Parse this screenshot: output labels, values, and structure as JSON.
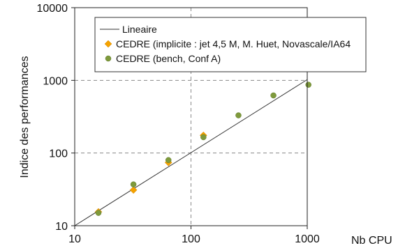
{
  "chart_data": {
    "type": "scatter",
    "title": "",
    "xlabel": "Nb CPU",
    "ylabel": "Indice des performances",
    "xscale": "log",
    "yscale": "log",
    "xlim": [
      10,
      1000
    ],
    "ylim": [
      10,
      10000
    ],
    "x_ticks": [
      {
        "value": 10,
        "label": "10"
      },
      {
        "value": 100,
        "label": "100"
      },
      {
        "value": 1000,
        "label": "1000"
      }
    ],
    "y_ticks": [
      {
        "value": 10,
        "label": "10"
      },
      {
        "value": 100,
        "label": "100"
      },
      {
        "value": 1000,
        "label": "1000"
      },
      {
        "value": 10000,
        "label": "10000"
      }
    ],
    "grid": "dashed gray at decade lines",
    "legend_position": "top-left",
    "series": [
      {
        "name": "Lineaire",
        "style": "line",
        "color": "#333333",
        "x": [
          10,
          1024
        ],
        "y": [
          10,
          1024
        ]
      },
      {
        "name": "CEDRE (implicite : jet 4,5 M, M. Huet, Novascale/IA64",
        "style": "diamond",
        "color": "#f5a300",
        "x": [
          16,
          32,
          64,
          128
        ],
        "y": [
          15.5,
          31,
          74,
          175
        ]
      },
      {
        "name": "CEDRE (bench, Conf A)",
        "style": "circle",
        "color": "#7f9a3c",
        "x": [
          16,
          32,
          64,
          128,
          256,
          512,
          1024
        ],
        "y": [
          15,
          37,
          80,
          165,
          330,
          620,
          870
        ]
      }
    ]
  }
}
